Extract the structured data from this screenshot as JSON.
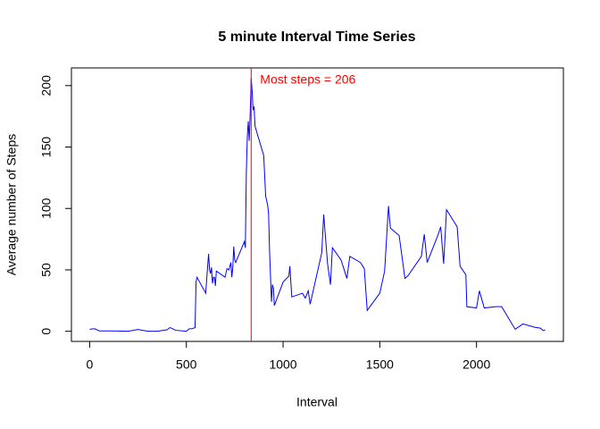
{
  "chart_data": {
    "type": "line",
    "title": "5 minute Interval Time Series",
    "x_label": "Interval",
    "y_label": "Average number of Steps",
    "annotation": "Most steps =  206",
    "vline": 835,
    "vline_color": "#ff0000",
    "xlim": [
      -94.2,
      2449.2
    ],
    "xticks": [
      0,
      500,
      1000,
      1500,
      2000
    ],
    "ylim": [
      -8.25,
      214.4
    ],
    "yticks": [
      0,
      50,
      100,
      150,
      200
    ],
    "series": [
      {
        "name": "steps",
        "color": "#0000ff",
        "x": [
          0,
          25,
          50,
          100,
          150,
          200,
          250,
          300,
          350,
          400,
          415,
          430,
          445,
          500,
          515,
          530,
          545,
          550,
          555,
          600,
          610,
          615,
          620,
          625,
          630,
          635,
          640,
          645,
          650,
          655,
          700,
          710,
          720,
          730,
          735,
          740,
          745,
          750,
          755,
          800,
          805,
          810,
          815,
          820,
          825,
          830,
          835,
          840,
          845,
          850,
          855,
          900,
          910,
          920,
          925,
          930,
          935,
          940,
          945,
          950,
          955,
          1000,
          1030,
          1035,
          1045,
          1100,
          1115,
          1130,
          1140,
          1200,
          1210,
          1230,
          1245,
          1255,
          1300,
          1330,
          1345,
          1400,
          1420,
          1435,
          1500,
          1525,
          1545,
          1555,
          1600,
          1630,
          1645,
          1715,
          1730,
          1745,
          1800,
          1815,
          1830,
          1845,
          1900,
          1915,
          1945,
          1950,
          2000,
          2015,
          2040,
          2100,
          2130,
          2200,
          2240,
          2300,
          2330,
          2345,
          2355
        ],
        "values": [
          1.7,
          2.1,
          0.3,
          0.3,
          0.2,
          0,
          1.5,
          0,
          0,
          1.2,
          3,
          2,
          0.8,
          0,
          2,
          2.1,
          3,
          40,
          44,
          31,
          53,
          63,
          50,
          47,
          52,
          39,
          44,
          44,
          37,
          49,
          44,
          51,
          50,
          56,
          44,
          52,
          69,
          58,
          56,
          73,
          68,
          129,
          158,
          171,
          155,
          177,
          206,
          196,
          180,
          183,
          167,
          143,
          110,
          103,
          96,
          66,
          45,
          24,
          38,
          35,
          21,
          40,
          45,
          53,
          28,
          31,
          27,
          33,
          22,
          64,
          95,
          55,
          38,
          68,
          58,
          43,
          61,
          56,
          51,
          17,
          31,
          49,
          102,
          84,
          78,
          43,
          45,
          61,
          79,
          56,
          78,
          85,
          55,
          99,
          85,
          53,
          46,
          20,
          19,
          33,
          19,
          20,
          20,
          1.6,
          6,
          3.3,
          2.6,
          0.6,
          1.1
        ]
      }
    ]
  }
}
